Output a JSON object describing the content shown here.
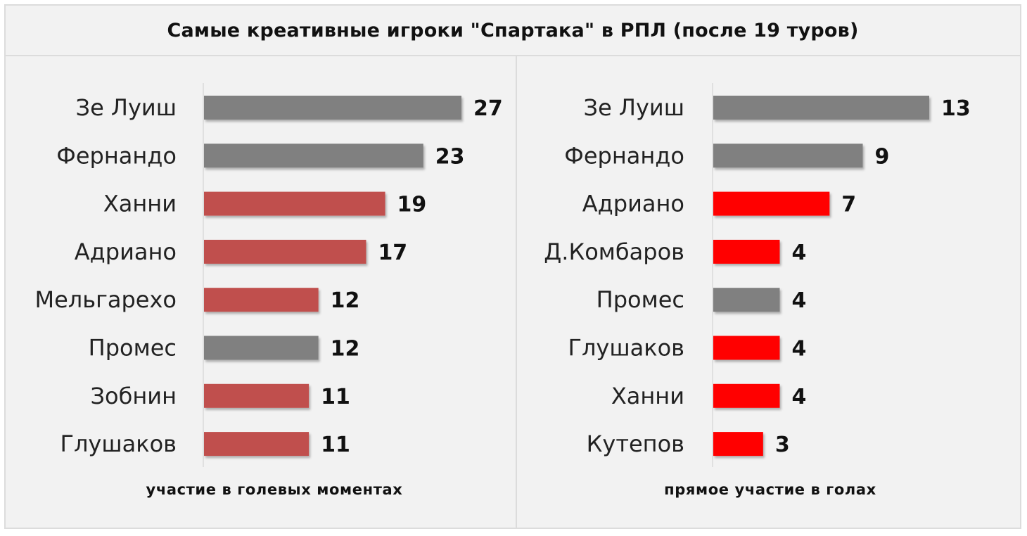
{
  "title": "Самые креативные игроки \"Спартака\" в РПЛ (после 19 туров)",
  "colors": {
    "gray": "#808080",
    "left_red": "#c0504d",
    "right_red": "#ff0000"
  },
  "chart_data": [
    {
      "type": "bar",
      "orientation": "horizontal",
      "xlabel": "участие в голевых моментах",
      "categories": [
        "Зе Луиш",
        "Фернандо",
        "Ханни",
        "Адриано",
        "Мельгарехо",
        "Промес",
        "Зобнин",
        "Глушаков"
      ],
      "values": [
        27,
        23,
        19,
        17,
        12,
        12,
        11,
        11
      ],
      "bar_colors": [
        "gray",
        "gray",
        "left_red",
        "left_red",
        "left_red",
        "gray",
        "left_red",
        "left_red"
      ],
      "xlim": [
        0,
        27
      ]
    },
    {
      "type": "bar",
      "orientation": "horizontal",
      "xlabel": "прямое участие в голах",
      "categories": [
        "Зе Луиш",
        "Фернандо",
        "Адриано",
        "Д.Комбаров",
        "Промес",
        "Глушаков",
        "Ханни",
        "Кутепов"
      ],
      "values": [
        13,
        9,
        7,
        4,
        4,
        4,
        4,
        3
      ],
      "bar_colors": [
        "gray",
        "gray",
        "right_red",
        "right_red",
        "gray",
        "right_red",
        "right_red",
        "right_red"
      ],
      "xlim": [
        0,
        13
      ]
    }
  ]
}
